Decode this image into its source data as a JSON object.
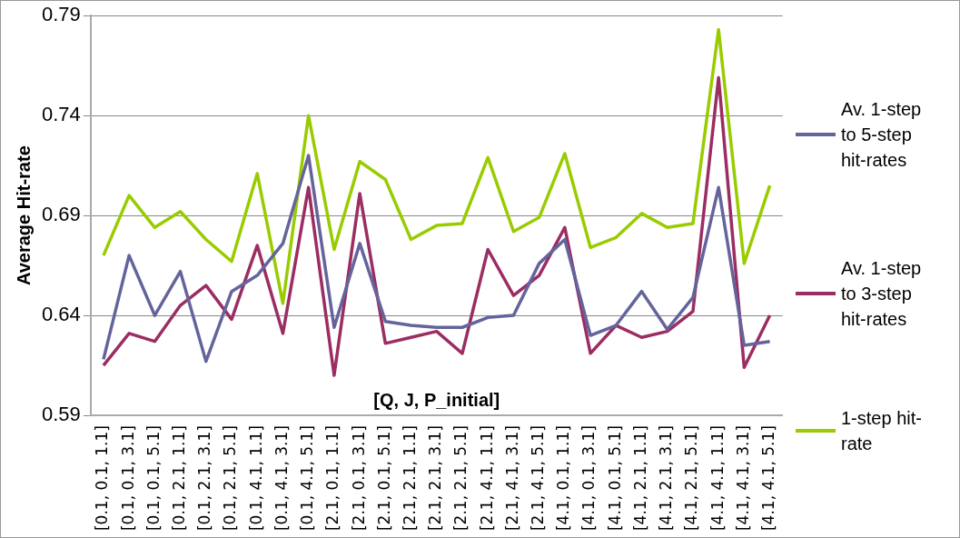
{
  "chart_data": {
    "type": "line",
    "xlabel": "[Q, J, P_initial]",
    "ylabel": "Average Hit-rate",
    "categories": [
      "[0.1, 0.1, 1.1]",
      "[0.1, 0.1, 3.1]",
      "[0.1, 0.1, 5.1]",
      "[0.1, 2.1, 1.1]",
      "[0.1, 2.1, 3.1]",
      "[0.1, 2.1, 5.1]",
      "[0.1, 4.1, 1.1]",
      "[0.1, 4.1, 3.1]",
      "[0.1, 4.1, 5.1]",
      "[2.1, 0.1, 1.1]",
      "[2.1, 0.1, 3.1]",
      "[2.1, 0.1, 5.1]",
      "[2.1, 2.1, 1.1]",
      "[2.1, 2.1, 3.1]",
      "[2.1, 2.1, 5.1]",
      "[2.1, 4.1, 1.1]",
      "[2.1, 4.1, 3.1]",
      "[2.1, 4.1, 5.1]",
      "[4.1, 0.1, 1.1]",
      "[4.1, 0.1, 3.1]",
      "[4.1, 0.1, 5.1]",
      "[4.1, 2.1, 1.1]",
      "[4.1, 2.1, 3.1]",
      "[4.1, 2.1, 5.1]",
      "[4.1, 4.1, 1.1]",
      "[4.1, 4.1, 3.1]",
      "[4.1, 4.1, 5.1]"
    ],
    "series": [
      {
        "name": "Av. 1-step to 5-step hit-rates",
        "color": "#64649c",
        "values": [
          0.618,
          0.67,
          0.64,
          0.662,
          0.617,
          0.652,
          0.66,
          0.676,
          0.72,
          0.634,
          0.676,
          0.637,
          0.635,
          0.634,
          0.634,
          0.639,
          0.64,
          0.666,
          0.678,
          0.63,
          0.635,
          0.652,
          0.633,
          0.649,
          0.704,
          0.625,
          0.627
        ]
      },
      {
        "name": "Av. 1-step to 3-step hit-rates",
        "color": "#9b2d62",
        "values": [
          0.615,
          0.631,
          0.627,
          0.645,
          0.655,
          0.638,
          0.675,
          0.631,
          0.704,
          0.61,
          0.701,
          0.626,
          0.629,
          0.632,
          0.621,
          0.673,
          0.65,
          0.66,
          0.684,
          0.621,
          0.635,
          0.629,
          0.632,
          0.642,
          0.759,
          0.614,
          0.64
        ]
      },
      {
        "name": "1-step hit-rate",
        "color": "#99cc00",
        "values": [
          0.67,
          0.7,
          0.684,
          0.692,
          0.678,
          0.667,
          0.711,
          0.646,
          0.74,
          0.673,
          0.717,
          0.708,
          0.678,
          0.685,
          0.686,
          0.719,
          0.682,
          0.689,
          0.721,
          0.674,
          0.679,
          0.691,
          0.684,
          0.686,
          0.783,
          0.666,
          0.705
        ]
      }
    ],
    "ylim": [
      0.59,
      0.79
    ],
    "yticks": [
      0.59,
      0.64,
      0.69,
      0.74,
      0.79
    ],
    "grid": "y",
    "legend": "right",
    "marker": "none",
    "line_style": "solid"
  }
}
